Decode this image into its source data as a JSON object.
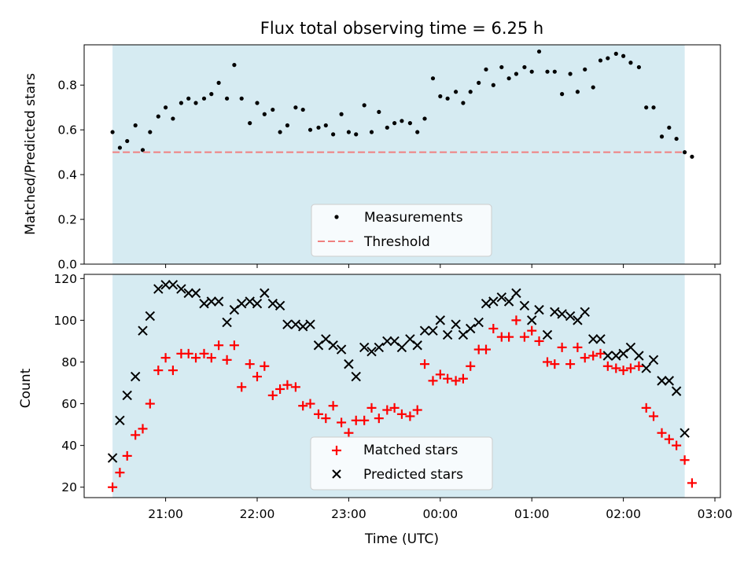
{
  "chart_data": [
    {
      "type": "scatter",
      "title": "Flux total observing time = 6.25 h",
      "xlabel": "",
      "ylabel": "Matched/Predicted stars",
      "ylim": [
        0.0,
        0.98
      ],
      "yticks": [
        0.0,
        0.2,
        0.4,
        0.6,
        0.8
      ],
      "ytick_labels": [
        "0.0",
        "0.2",
        "0.4",
        "0.6",
        "0.8"
      ],
      "x_unit": "hours since 00:00 UTC",
      "xlim": [
        -3.89,
        3.06
      ],
      "observing_window": [
        -3.58,
        2.67
      ],
      "observing_window_color": "#add8e6",
      "legend_position": "lower center",
      "series": [
        {
          "name": "Measurements",
          "kind": "points",
          "color": "#000000",
          "x": [
            -3.58,
            -3.5,
            -3.42,
            -3.33,
            -3.25,
            -3.17,
            -3.08,
            -3.0,
            -2.92,
            -2.83,
            -2.75,
            -2.67,
            -2.58,
            -2.5,
            -2.42,
            -2.33,
            -2.25,
            -2.17,
            -2.08,
            -2.0,
            -1.92,
            -1.83,
            -1.75,
            -1.67,
            -1.58,
            -1.5,
            -1.42,
            -1.33,
            -1.25,
            -1.17,
            -1.08,
            -1.0,
            -0.92,
            -0.83,
            -0.75,
            -0.67,
            -0.58,
            -0.5,
            -0.42,
            -0.33,
            -0.25,
            -0.17,
            -0.08,
            0.0,
            0.08,
            0.17,
            0.25,
            0.33,
            0.42,
            0.5,
            0.58,
            0.67,
            0.75,
            0.83,
            0.92,
            1.0,
            1.08,
            1.17,
            1.25,
            1.33,
            1.42,
            1.5,
            1.58,
            1.67,
            1.75,
            1.83,
            1.92,
            2.0,
            2.08,
            2.17,
            2.25,
            2.33,
            2.42,
            2.5,
            2.58,
            2.67,
            2.75
          ],
          "y": [
            0.59,
            0.52,
            0.55,
            0.62,
            0.51,
            0.59,
            0.66,
            0.7,
            0.65,
            0.72,
            0.74,
            0.72,
            0.74,
            0.76,
            0.81,
            0.74,
            0.89,
            0.74,
            0.63,
            0.72,
            0.67,
            0.69,
            0.59,
            0.62,
            0.7,
            0.69,
            0.6,
            0.61,
            0.62,
            0.58,
            0.67,
            0.59,
            0.58,
            0.71,
            0.59,
            0.68,
            0.61,
            0.63,
            0.64,
            0.63,
            0.59,
            0.65,
            0.83,
            0.75,
            0.74,
            0.77,
            0.72,
            0.77,
            0.81,
            0.87,
            0.8,
            0.88,
            0.83,
            0.85,
            0.88,
            0.86,
            0.95,
            0.86,
            0.86,
            0.76,
            0.85,
            0.77,
            0.87,
            0.79,
            0.91,
            0.92,
            0.94,
            0.93,
            0.9,
            0.88,
            0.7,
            0.7,
            0.57,
            0.61,
            0.56,
            0.5,
            0.48
          ]
        },
        {
          "name": "Threshold",
          "kind": "hline",
          "color": "#f08080",
          "y": 0.5,
          "x_range": [
            -3.58,
            2.67
          ]
        }
      ]
    },
    {
      "type": "scatter",
      "title": "",
      "xlabel": "Time (UTC)",
      "ylabel": "Count",
      "ylim": [
        15,
        122
      ],
      "yticks": [
        20,
        40,
        60,
        80,
        100,
        120
      ],
      "ytick_labels": [
        "20",
        "40",
        "60",
        "80",
        "100",
        "120"
      ],
      "x_unit": "hours since 00:00 UTC",
      "xlim": [
        -3.89,
        3.06
      ],
      "xticks": [
        -3,
        -2,
        -1,
        0,
        1,
        2,
        3
      ],
      "xtick_labels": [
        "21:00",
        "22:00",
        "23:00",
        "00:00",
        "01:00",
        "02:00",
        "03:00"
      ],
      "observing_window": [
        -3.58,
        2.67
      ],
      "observing_window_color": "#add8e6",
      "legend_position": "lower center",
      "series": [
        {
          "name": "Matched stars",
          "marker": "plus",
          "color": "#ff0000",
          "x": [
            -3.58,
            -3.5,
            -3.42,
            -3.33,
            -3.25,
            -3.17,
            -3.08,
            -3.0,
            -2.92,
            -2.83,
            -2.75,
            -2.67,
            -2.58,
            -2.5,
            -2.42,
            -2.33,
            -2.25,
            -2.17,
            -2.08,
            -2.0,
            -1.92,
            -1.83,
            -1.75,
            -1.67,
            -1.58,
            -1.5,
            -1.42,
            -1.33,
            -1.25,
            -1.17,
            -1.08,
            -1.0,
            -0.92,
            -0.83,
            -0.75,
            -0.67,
            -0.58,
            -0.5,
            -0.42,
            -0.33,
            -0.25,
            -0.17,
            -0.08,
            0.0,
            0.08,
            0.17,
            0.25,
            0.33,
            0.42,
            0.5,
            0.58,
            0.67,
            0.75,
            0.83,
            0.92,
            1.0,
            1.08,
            1.17,
            1.25,
            1.33,
            1.42,
            1.5,
            1.58,
            1.67,
            1.75,
            1.83,
            1.92,
            2.0,
            2.08,
            2.17,
            2.25,
            2.33,
            2.42,
            2.5,
            2.58,
            2.67,
            2.75
          ],
          "y": [
            20,
            27,
            35,
            45,
            48,
            60,
            76,
            82,
            76,
            84,
            84,
            82,
            84,
            82,
            88,
            81,
            88,
            68,
            79,
            73,
            78,
            64,
            67,
            69,
            68,
            59,
            60,
            55,
            53,
            59,
            51,
            46,
            52,
            52,
            58,
            53,
            57,
            58,
            55,
            54,
            57,
            79,
            71,
            74,
            72,
            71,
            72,
            78,
            86,
            86,
            96,
            92,
            92,
            100,
            92,
            95,
            90,
            80,
            79,
            87,
            79,
            87,
            82,
            83,
            84,
            78,
            77,
            76,
            77,
            78,
            58,
            54,
            46,
            43,
            40,
            33,
            22
          ]
        },
        {
          "name": "Predicted stars",
          "marker": "x",
          "color": "#000000",
          "x": [
            -3.58,
            -3.5,
            -3.42,
            -3.33,
            -3.25,
            -3.17,
            -3.08,
            -3.0,
            -2.92,
            -2.83,
            -2.75,
            -2.67,
            -2.58,
            -2.5,
            -2.42,
            -2.33,
            -2.25,
            -2.17,
            -2.08,
            -2.0,
            -1.92,
            -1.83,
            -1.75,
            -1.67,
            -1.58,
            -1.5,
            -1.42,
            -1.33,
            -1.25,
            -1.17,
            -1.08,
            -1.0,
            -0.92,
            -0.83,
            -0.75,
            -0.67,
            -0.58,
            -0.5,
            -0.42,
            -0.33,
            -0.25,
            -0.17,
            -0.08,
            0.0,
            0.08,
            0.17,
            0.25,
            0.33,
            0.42,
            0.5,
            0.58,
            0.67,
            0.75,
            0.83,
            0.92,
            1.0,
            1.08,
            1.17,
            1.25,
            1.33,
            1.42,
            1.5,
            1.58,
            1.67,
            1.75,
            1.83,
            1.92,
            2.0,
            2.08,
            2.17,
            2.25,
            2.33,
            2.42,
            2.5,
            2.58,
            2.67,
            2.75
          ],
          "y": [
            34,
            52,
            64,
            73,
            95,
            102,
            115,
            117,
            117,
            115,
            113,
            113,
            108,
            109,
            109,
            99,
            105,
            108,
            109,
            108,
            113,
            108,
            107,
            98,
            98,
            97,
            98,
            88,
            91,
            88,
            86,
            79,
            73,
            87,
            85,
            87,
            90,
            90,
            87,
            91,
            88,
            95,
            95,
            100,
            93,
            98,
            93,
            96,
            99,
            108,
            109,
            111,
            109,
            113,
            107,
            100,
            105,
            93,
            104,
            103,
            102,
            100,
            104,
            91,
            91,
            83,
            83,
            84,
            87,
            83,
            77,
            81,
            71,
            71,
            66,
            46,
            null
          ]
        }
      ]
    }
  ]
}
